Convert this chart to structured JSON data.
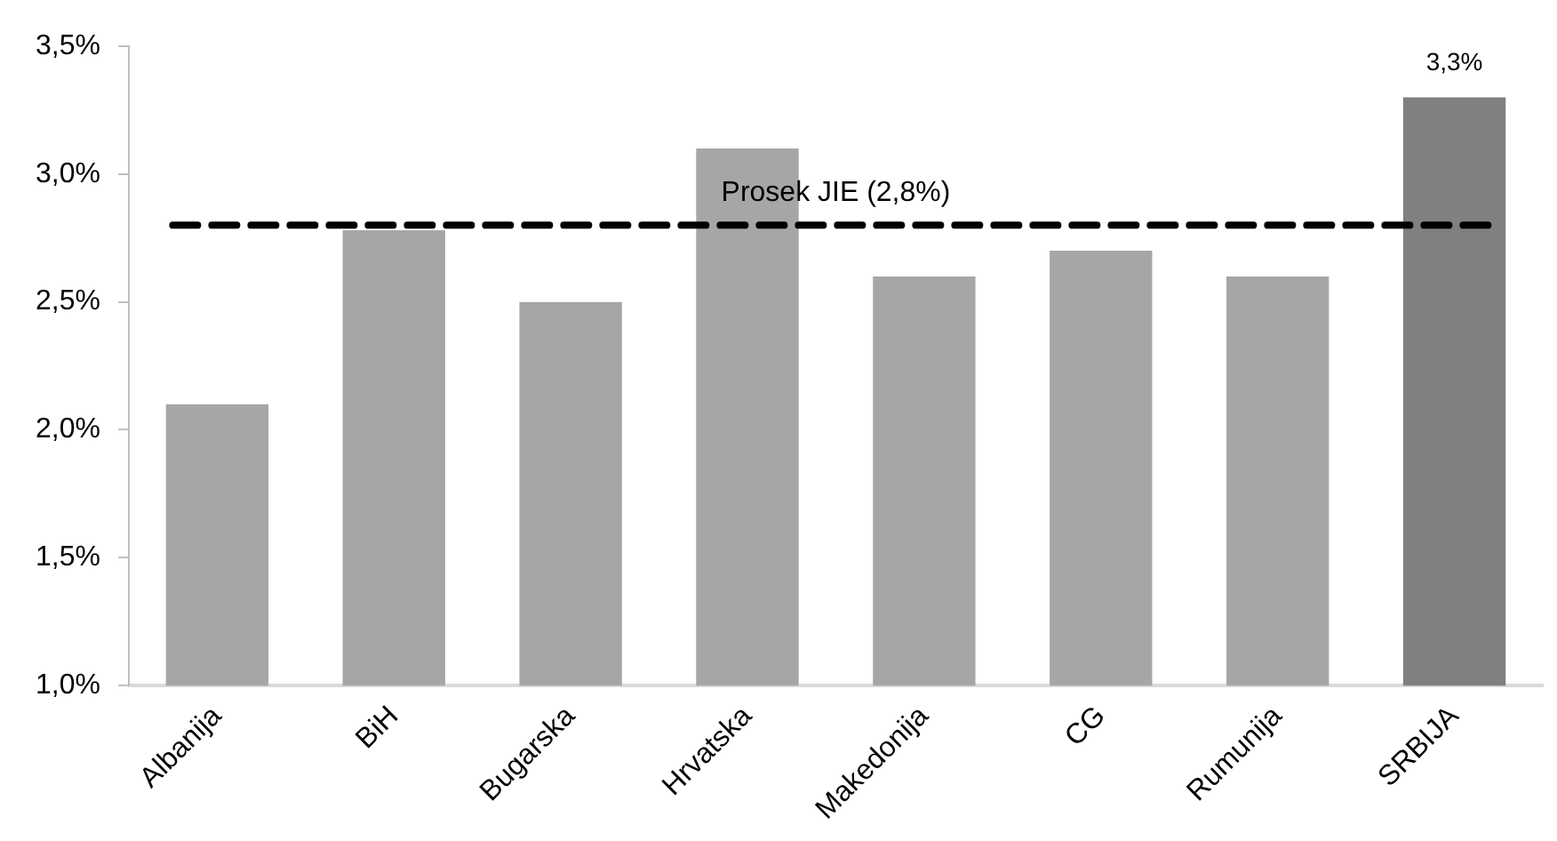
{
  "chart_data": {
    "type": "bar",
    "categories": [
      "Albanija",
      "BiH",
      "Bugarska",
      "Hrvatska",
      "Makedonija",
      "CG",
      "Rumunija",
      "SRBIJA"
    ],
    "values": [
      2.1,
      2.78,
      2.5,
      3.1,
      2.6,
      2.7,
      2.6,
      3.3
    ],
    "colors": [
      "#a6a6a6",
      "#a6a6a6",
      "#a6a6a6",
      "#a6a6a6",
      "#a6a6a6",
      "#a6a6a6",
      "#a6a6a6",
      "#808080"
    ],
    "value_labels": [
      null,
      null,
      null,
      null,
      null,
      null,
      null,
      "3,3%"
    ],
    "ylim": [
      1.0,
      3.5
    ],
    "yticks": [
      {
        "value": 1.0,
        "label": "1,0%"
      },
      {
        "value": 1.5,
        "label": "1,5%"
      },
      {
        "value": 2.0,
        "label": "2,0%"
      },
      {
        "value": 2.5,
        "label": "2,5%"
      },
      {
        "value": 3.0,
        "label": "3,0%"
      },
      {
        "value": 3.5,
        "label": "3,5%"
      }
    ],
    "ref_lines": [
      {
        "axis": "y",
        "value": 2.8,
        "label": "Prosek JIE (2,8%)",
        "color": "#000000",
        "line_style": "dashed"
      }
    ],
    "grid": false,
    "legend": false
  }
}
